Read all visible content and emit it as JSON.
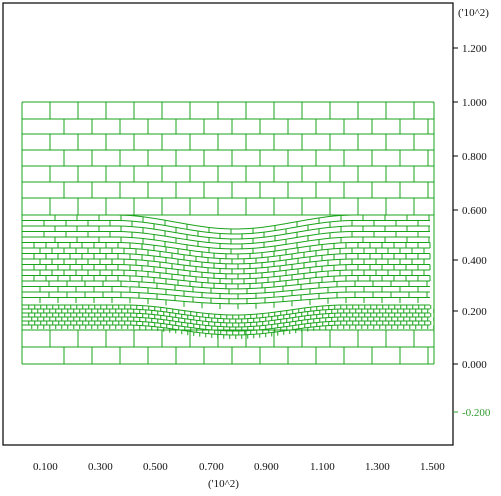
{
  "view": {
    "scale_label_x": "('10^2)",
    "scale_label_y": "('10^2)"
  },
  "axes": {
    "x_ticks": [
      "0.100",
      "0.300",
      "0.500",
      "0.700",
      "0.900",
      "1.100",
      "1.300",
      "1.500"
    ],
    "y_ticks": [
      "1.200",
      "1.000",
      "0.800",
      "0.600",
      "0.400",
      "0.200",
      "0.000",
      "-0.200"
    ]
  },
  "colors": {
    "mesh": "#1aa31a",
    "frame": "#000000",
    "background": "#ffffff"
  }
}
